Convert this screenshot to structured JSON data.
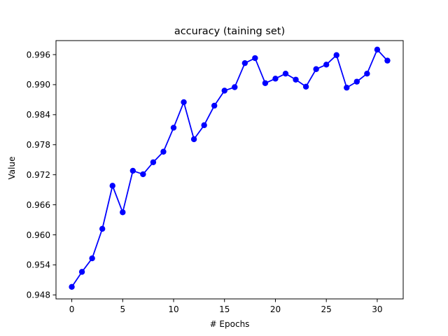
{
  "chart_data": {
    "type": "line",
    "title": "accuracy (taining set)",
    "xlabel": "# Epochs",
    "ylabel": "Value",
    "xlim": [
      -1.55,
      32.55
    ],
    "ylim": [
      0.9472,
      0.9988
    ],
    "xticks": [
      0,
      5,
      10,
      15,
      20,
      25,
      30
    ],
    "yticks": [
      0.948,
      0.954,
      0.96,
      0.966,
      0.972,
      0.978,
      0.984,
      0.99,
      0.996
    ],
    "ytick_labels": [
      "0.948",
      "0.954",
      "0.960",
      "0.966",
      "0.972",
      "0.978",
      "0.984",
      "0.990",
      "0.996"
    ],
    "grid": false,
    "series": [
      {
        "color": "#0000ff",
        "marker": "circle",
        "x": [
          0,
          1,
          2,
          3,
          4,
          5,
          6,
          7,
          8,
          9,
          10,
          11,
          12,
          13,
          14,
          15,
          16,
          17,
          18,
          19,
          20,
          21,
          22,
          23,
          24,
          25,
          26,
          27,
          28,
          29,
          30,
          31
        ],
        "values": [
          0.9496,
          0.9526,
          0.9553,
          0.9612,
          0.9698,
          0.9645,
          0.9728,
          0.9721,
          0.9745,
          0.9766,
          0.9814,
          0.9865,
          0.9791,
          0.9819,
          0.9858,
          0.9888,
          0.9895,
          0.9943,
          0.9953,
          0.9903,
          0.9912,
          0.9922,
          0.991,
          0.9896,
          0.9931,
          0.994,
          0.9959,
          0.9894,
          0.9906,
          0.9922,
          0.997,
          0.9948
        ]
      }
    ]
  }
}
